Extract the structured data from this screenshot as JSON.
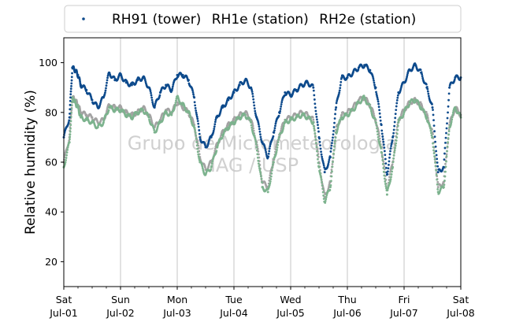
{
  "chart_data": {
    "type": "scatter",
    "ylabel": "Relative humidity (%)",
    "xlabel": "",
    "title": "",
    "ylim": [
      10,
      110
    ],
    "xlim": [
      0,
      7
    ],
    "x_unit": "days since Jul-01 00:00",
    "y_ticks": [
      20,
      40,
      60,
      80,
      100
    ],
    "x_ticks": [
      {
        "pos": 0,
        "day": "Sat",
        "date": "Jul-01"
      },
      {
        "pos": 1,
        "day": "Sun",
        "date": "Jul-02"
      },
      {
        "pos": 2,
        "day": "Mon",
        "date": "Jul-03"
      },
      {
        "pos": 3,
        "day": "Tue",
        "date": "Jul-04"
      },
      {
        "pos": 4,
        "day": "Wed",
        "date": "Jul-05"
      },
      {
        "pos": 5,
        "day": "Thu",
        "date": "Jul-06"
      },
      {
        "pos": 6,
        "day": "Fri",
        "date": "Jul-07"
      },
      {
        "pos": 7,
        "day": "Sat",
        "date": "Jul-08"
      }
    ],
    "grid": "vertical",
    "legend_position": "top-outside",
    "legend": [
      "RH91 (tower)",
      "RH1e (station)",
      "RH2e (station)"
    ],
    "watermark": [
      "Grupo de Micrometeorologia",
      "IAG / USP"
    ],
    "series": [
      {
        "name": "RH91 (tower)",
        "color": "#0d4a8c",
        "x": [
          0.0,
          0.1,
          0.15,
          0.2,
          0.25,
          0.3,
          0.4,
          0.5,
          0.6,
          0.7,
          0.8,
          0.9,
          1.0,
          1.1,
          1.2,
          1.3,
          1.4,
          1.5,
          1.6,
          1.7,
          1.8,
          1.9,
          2.0,
          2.1,
          2.2,
          2.3,
          2.4,
          2.5,
          2.6,
          2.7,
          2.8,
          2.9,
          3.0,
          3.1,
          3.2,
          3.3,
          3.4,
          3.5,
          3.6,
          3.7,
          3.8,
          3.9,
          4.0,
          4.1,
          4.2,
          4.3,
          4.4,
          4.5,
          4.6,
          4.7,
          4.8,
          4.9,
          5.0,
          5.1,
          5.2,
          5.3,
          5.4,
          5.5,
          5.6,
          5.7,
          5.8,
          5.9,
          6.0,
          6.1,
          6.2,
          6.3,
          6.4,
          6.5,
          6.6,
          6.7,
          6.8,
          6.9,
          7.0
        ],
        "y": [
          70,
          78,
          98,
          97,
          95,
          91,
          89,
          85,
          82,
          86,
          96,
          93,
          95,
          92,
          91,
          93,
          94,
          90,
          82,
          88,
          91,
          89,
          95,
          95,
          93,
          86,
          70,
          66,
          70,
          78,
          82,
          85,
          88,
          91,
          93,
          90,
          78,
          68,
          62,
          72,
          80,
          88,
          87,
          89,
          91,
          92,
          90,
          70,
          56,
          62,
          82,
          94,
          94,
          96,
          98,
          99,
          97,
          90,
          75,
          55,
          70,
          88,
          92,
          97,
          99,
          96,
          90,
          82,
          56,
          58,
          90,
          94,
          94
        ]
      },
      {
        "name": "RH1e (station)",
        "color": "#7db38e",
        "x": [
          0.0,
          0.1,
          0.15,
          0.2,
          0.25,
          0.3,
          0.4,
          0.5,
          0.6,
          0.7,
          0.8,
          0.9,
          1.0,
          1.1,
          1.2,
          1.3,
          1.4,
          1.5,
          1.6,
          1.7,
          1.8,
          1.9,
          2.0,
          2.1,
          2.2,
          2.3,
          2.4,
          2.5,
          2.6,
          2.7,
          2.8,
          2.9,
          3.0,
          3.1,
          3.2,
          3.3,
          3.4,
          3.5,
          3.6,
          3.7,
          3.8,
          3.9,
          4.0,
          4.1,
          4.2,
          4.3,
          4.4,
          4.5,
          4.6,
          4.7,
          4.8,
          4.9,
          5.0,
          5.1,
          5.2,
          5.3,
          5.4,
          5.5,
          5.6,
          5.7,
          5.8,
          5.9,
          6.0,
          6.1,
          6.2,
          6.3,
          6.4,
          6.5,
          6.6,
          6.7,
          6.8,
          6.9,
          7.0
        ],
        "y": [
          58,
          68,
          86,
          84,
          82,
          78,
          77,
          76,
          74,
          76,
          82,
          81,
          81,
          79,
          78,
          80,
          81,
          78,
          72,
          76,
          80,
          79,
          86,
          83,
          80,
          74,
          60,
          55,
          58,
          66,
          71,
          74,
          76,
          78,
          79,
          76,
          66,
          50,
          48,
          60,
          70,
          76,
          77,
          78,
          79,
          78,
          76,
          58,
          44,
          50,
          72,
          78,
          79,
          81,
          84,
          86,
          82,
          76,
          64,
          47,
          58,
          76,
          80,
          84,
          85,
          82,
          78,
          70,
          48,
          50,
          74,
          82,
          78
        ]
      },
      {
        "name": "RH2e (station)",
        "color": "#a3a3a3",
        "x": [
          0.0,
          0.1,
          0.15,
          0.2,
          0.25,
          0.3,
          0.4,
          0.5,
          0.6,
          0.7,
          0.8,
          0.9,
          1.0,
          1.1,
          1.2,
          1.3,
          1.4,
          1.5,
          1.6,
          1.7,
          1.8,
          1.9,
          2.0,
          2.1,
          2.2,
          2.3,
          2.4,
          2.5,
          2.6,
          2.7,
          2.8,
          2.9,
          3.0,
          3.1,
          3.2,
          3.3,
          3.4,
          3.5,
          3.6,
          3.7,
          3.8,
          3.9,
          4.0,
          4.1,
          4.2,
          4.3,
          4.4,
          4.5,
          4.6,
          4.7,
          4.8,
          4.9,
          5.0,
          5.1,
          5.2,
          5.3,
          5.4,
          5.5,
          5.6,
          5.7,
          5.8,
          5.9,
          6.0,
          6.1,
          6.2,
          6.3,
          6.4,
          6.5,
          6.6,
          6.7,
          6.8,
          6.9,
          7.0
        ],
        "y": [
          60,
          70,
          86,
          85,
          83,
          80,
          79,
          78,
          76,
          77,
          83,
          82,
          82,
          80,
          79,
          80,
          82,
          79,
          74,
          77,
          81,
          80,
          84,
          82,
          80,
          75,
          62,
          57,
          60,
          67,
          72,
          75,
          77,
          79,
          80,
          77,
          68,
          52,
          50,
          61,
          71,
          77,
          78,
          79,
          80,
          79,
          77,
          60,
          46,
          52,
          73,
          79,
          80,
          82,
          85,
          86,
          83,
          77,
          66,
          49,
          60,
          77,
          81,
          84,
          85,
          83,
          79,
          72,
          50,
          52,
          75,
          82,
          79
        ]
      }
    ]
  }
}
